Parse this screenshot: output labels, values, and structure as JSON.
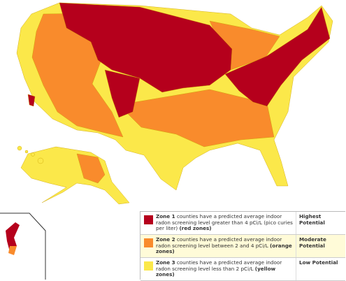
{
  "legend": {
    "rows": [
      {
        "zone": "Zone 1",
        "text": "counties have a predicted average indoor radon screening level greater than 4 pCi/L (pico curies per liter)",
        "note": "(red zones)",
        "potential": "Highest Potential",
        "color": "#b5001c"
      },
      {
        "zone": "Zone 2",
        "text": "counties have a predicted average indoor radon screening level between 2 and 4 pCi/L",
        "note": "(orange zones)",
        "potential": "Moderate Potential",
        "color": "#f98b2c"
      },
      {
        "zone": "Zone 3",
        "text": "counties have a predicted average indoor radon screening level less than 2 pCi/L",
        "note": "(yellow zones)",
        "potential": "Low Potential",
        "color": "#fbe84a"
      }
    ]
  }
}
